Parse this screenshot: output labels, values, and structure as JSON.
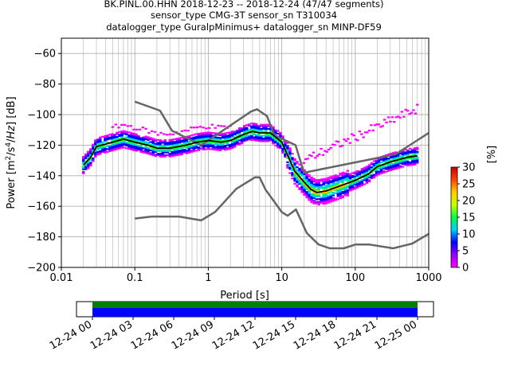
{
  "title_lines": [
    "BK.PINL.00.HHN   2018-12-23 -- 2018-12-24  (47/47 segments)",
    "sensor_type CMG-3T sensor_sn T310034",
    "datalogger_type GuralpMinimus+ datalogger_sn MINP-DF59"
  ],
  "chart_data": {
    "type": "heatmap",
    "xlabel": "Period [s]",
    "ylabel": "Power [m2/s4/Hz] [dB]",
    "xscale": "log",
    "xlim": [
      0.01,
      1000
    ],
    "ylim": [
      -200,
      -50
    ],
    "x_ticks": [
      0.01,
      0.1,
      1,
      10,
      100,
      1000
    ],
    "x_tick_labels": [
      "0.01",
      "0.1",
      "1",
      "10",
      "100",
      "1000"
    ],
    "y_ticks": [
      -200,
      -180,
      -160,
      -140,
      -120,
      -100,
      -80,
      -60
    ],
    "y_tick_labels": [
      "−200",
      "−180",
      "−160",
      "−140",
      "−120",
      "−100",
      "−80",
      "−60"
    ],
    "grid": true,
    "mean_curve": {
      "period": [
        0.02,
        0.025,
        0.03,
        0.05,
        0.07,
        0.1,
        0.15,
        0.2,
        0.3,
        0.5,
        0.7,
        1,
        1.5,
        2,
        3,
        4,
        5,
        7,
        10,
        15,
        20,
        25,
        30,
        40,
        60,
        100,
        150,
        200,
        300,
        500,
        700
      ],
      "power": [
        -133,
        -128,
        -121,
        -118,
        -116,
        -118,
        -120,
        -122,
        -122,
        -120,
        -118,
        -117,
        -118,
        -117,
        -113,
        -111,
        -112,
        -112,
        -118,
        -137,
        -144,
        -149,
        -151,
        -150,
        -147,
        -143,
        -139,
        -134,
        -131,
        -128,
        -127
      ]
    },
    "nhnm": {
      "period": [
        0.1,
        0.22,
        0.32,
        0.8,
        3.8,
        4.6,
        6.3,
        7.9,
        15.4,
        20,
        354.8,
        1000
      ],
      "power": [
        -91.5,
        -97.4,
        -110.5,
        -120,
        -98,
        -96.5,
        -101,
        -113.5,
        -120,
        -138,
        -126,
        -112
      ]
    },
    "nlnm": {
      "period": [
        0.1,
        0.17,
        0.4,
        0.8,
        1.24,
        2.4,
        4.3,
        5,
        6,
        10,
        12,
        15.6,
        21.9,
        31.6,
        45,
        70,
        101,
        154,
        328,
        600,
        1000
      ],
      "power": [
        -168,
        -166.7,
        -166.7,
        -169.2,
        -163.7,
        -148.6,
        -141.1,
        -141.1,
        -149,
        -163.8,
        -166.2,
        -162.1,
        -177.5,
        -185,
        -187.5,
        -187.5,
        -185,
        -185,
        -187.5,
        -184.4,
        -178
      ]
    },
    "colorbar": {
      "label": "[%]",
      "ticks": [
        0,
        5,
        10,
        15,
        20,
        25,
        30
      ],
      "range": [
        0,
        30
      ],
      "colors": [
        "#ff00ff",
        "#9900ff",
        "#0000ff",
        "#00ccff",
        "#00ff44",
        "#ccff00",
        "#ffcc00",
        "#ff4400",
        "#cc0000"
      ]
    },
    "time_axis": {
      "tick_labels": [
        "12-24 00",
        "12-24 03",
        "12-24 06",
        "12-24 09",
        "12-24 12",
        "12-24 15",
        "12-24 18",
        "12-24 21",
        "12-25 00"
      ],
      "coverage_colors": {
        "top": "#008000",
        "bottom": "#0000ff"
      }
    },
    "colors": {
      "mean": "#000000",
      "model": "#666666",
      "grid": "#b0b0b0"
    }
  }
}
